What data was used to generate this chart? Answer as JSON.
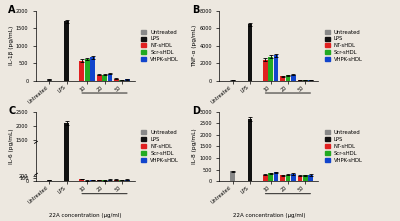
{
  "panels": [
    {
      "label": "A",
      "ylabel": "IL-1β (pg/mL)",
      "ylim": [
        0,
        2000
      ],
      "yticks": [
        0,
        500,
        1000,
        1500,
        2000
      ],
      "has_break": false,
      "data": {
        "Untreated": [
          30,
          0,
          0,
          0,
          0
        ],
        "LPS": [
          0,
          1700,
          0,
          0,
          0
        ],
        "NT-sHDL": [
          0,
          0,
          575,
          160,
          55
        ],
        "Scr-sHDL": [
          0,
          0,
          620,
          165,
          18
        ],
        "VHPK-sHDL": [
          0,
          0,
          670,
          195,
          35
        ]
      },
      "errors": {
        "Untreated": [
          4,
          0,
          0,
          0,
          0
        ],
        "LPS": [
          0,
          55,
          0,
          0,
          0
        ],
        "NT-sHDL": [
          0,
          0,
          35,
          14,
          7
        ],
        "Scr-sHDL": [
          0,
          0,
          38,
          14,
          4
        ],
        "VHPK-sHDL": [
          0,
          0,
          45,
          18,
          7
        ]
      }
    },
    {
      "label": "B",
      "ylabel": "TNF-α (pg/mL)",
      "ylim": [
        0,
        8000
      ],
      "yticks": [
        0,
        2000,
        4000,
        6000,
        8000
      ],
      "has_break": false,
      "data": {
        "Untreated": [
          30,
          0,
          0,
          0,
          0
        ],
        "LPS": [
          0,
          6500,
          0,
          0,
          0
        ],
        "NT-sHDL": [
          0,
          0,
          2400,
          500,
          50
        ],
        "Scr-sHDL": [
          0,
          0,
          2750,
          580,
          40
        ],
        "VHPK-sHDL": [
          0,
          0,
          2900,
          650,
          35
        ]
      },
      "errors": {
        "Untreated": [
          5,
          0,
          0,
          0,
          0
        ],
        "LPS": [
          0,
          180,
          0,
          0,
          0
        ],
        "NT-sHDL": [
          0,
          0,
          140,
          45,
          10
        ],
        "Scr-sHDL": [
          0,
          0,
          160,
          55,
          8
        ],
        "VHPK-sHDL": [
          0,
          0,
          180,
          55,
          8
        ]
      }
    },
    {
      "label": "C",
      "ylabel": "IL-6 (pg/mL)",
      "ylim": [
        0,
        2500
      ],
      "yticks": [
        0,
        100,
        200,
        1500,
        2000,
        2500
      ],
      "has_break": true,
      "break_low": 250,
      "break_high": 1400,
      "data": {
        "Untreated": [
          40,
          0,
          0,
          0,
          0
        ],
        "LPS": [
          0,
          2100,
          0,
          0,
          0
        ],
        "NT-sHDL": [
          0,
          0,
          82,
          38,
          55
        ],
        "Scr-sHDL": [
          0,
          0,
          22,
          28,
          48
        ],
        "VHPK-sHDL": [
          0,
          0,
          48,
          52,
          52
        ]
      },
      "errors": {
        "Untreated": [
          8,
          0,
          0,
          0,
          0
        ],
        "LPS": [
          0,
          70,
          0,
          0,
          0
        ],
        "NT-sHDL": [
          0,
          0,
          14,
          9,
          11
        ],
        "Scr-sHDL": [
          0,
          0,
          6,
          10,
          9
        ],
        "VHPK-sHDL": [
          0,
          0,
          10,
          13,
          11
        ]
      }
    },
    {
      "label": "D",
      "ylabel": "IL-8 (pg/mL)",
      "ylim": [
        0,
        3000
      ],
      "yticks": [
        0,
        500,
        1000,
        1500,
        2000,
        2500,
        3000
      ],
      "has_break": false,
      "data": {
        "Untreated": [
          430,
          0,
          0,
          0,
          0
        ],
        "LPS": [
          0,
          2700,
          0,
          0,
          0
        ],
        "NT-sHDL": [
          0,
          0,
          290,
          250,
          240
        ],
        "Scr-sHDL": [
          0,
          0,
          340,
          290,
          250
        ],
        "VHPK-sHDL": [
          0,
          0,
          380,
          310,
          270
        ]
      },
      "errors": {
        "Untreated": [
          30,
          0,
          0,
          0,
          0
        ],
        "LPS": [
          0,
          90,
          0,
          0,
          0
        ],
        "NT-sHDL": [
          0,
          0,
          30,
          28,
          25
        ],
        "Scr-sHDL": [
          0,
          0,
          32,
          30,
          27
        ],
        "VHPK-sHDL": [
          0,
          0,
          35,
          32,
          28
        ]
      }
    }
  ],
  "series_colors": {
    "Untreated": "#888888",
    "LPS": "#111111",
    "NT-sHDL": "#e02020",
    "Scr-sHDL": "#22aa22",
    "VHPK-sHDL": "#1144cc"
  },
  "xlabel": "22A concentration (μg/ml)",
  "legend_series": [
    "Untreated",
    "LPS",
    "NT-sHDL",
    "Scr-sHDL",
    "VHPK-sHDL"
  ],
  "background_color": "#ede8e0",
  "axis_bg": "#ede8e0",
  "group_labels": [
    "Untreated",
    "LPS",
    "10",
    "20",
    "50"
  ]
}
